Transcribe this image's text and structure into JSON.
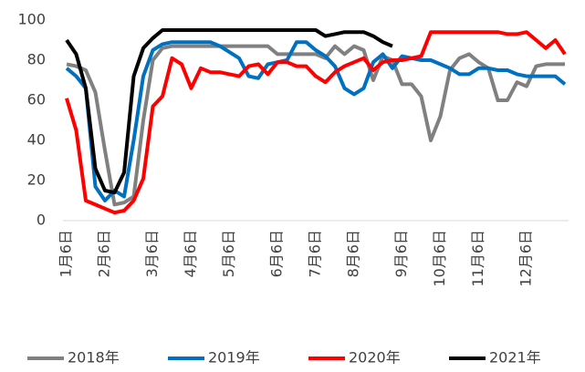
{
  "chart_data": {
    "type": "line",
    "categories": [
      "1月6日",
      null,
      null,
      null,
      "2月6日",
      null,
      null,
      null,
      null,
      "3月6日",
      null,
      null,
      null,
      "4月6日",
      null,
      null,
      null,
      "5月6日",
      null,
      null,
      null,
      null,
      "6月6日",
      null,
      null,
      null,
      "7月6日",
      null,
      null,
      null,
      "8月6日",
      null,
      null,
      null,
      null,
      "9月6日",
      null,
      null,
      null,
      "10月6日",
      null,
      null,
      null,
      "11月6日",
      null,
      null,
      null,
      null,
      "12月6日",
      null,
      null,
      null,
      null
    ],
    "series": [
      {
        "name": "2018年",
        "color": "#808080",
        "values": [
          78,
          77,
          75,
          64,
          35,
          8,
          9,
          12,
          50,
          80,
          86,
          87,
          87,
          87,
          87,
          87,
          87,
          87,
          87,
          87,
          87,
          87,
          83,
          83,
          83,
          83,
          83,
          81,
          87,
          83,
          87,
          85,
          70,
          82,
          80,
          68,
          68,
          62,
          40,
          52,
          75,
          81,
          83,
          79,
          76,
          60,
          60,
          69,
          67,
          77,
          78,
          78,
          78
        ]
      },
      {
        "name": "2019年",
        "color": "#0070c0",
        "values": [
          76,
          72,
          66,
          17,
          10,
          15,
          12,
          40,
          72,
          85,
          88,
          89,
          89,
          89,
          89,
          89,
          87,
          84,
          81,
          72,
          71,
          78,
          79,
          80,
          89,
          89,
          85,
          82,
          77,
          66,
          63,
          66,
          79,
          83,
          76,
          82,
          81,
          80,
          80,
          78,
          76,
          73,
          73,
          76,
          76,
          75,
          75,
          73,
          72,
          72,
          72,
          72,
          68
        ]
      },
      {
        "name": "2020年",
        "color": "#ff0000",
        "values": [
          61,
          45,
          10,
          8,
          6,
          4,
          5,
          10,
          21,
          57,
          62,
          81,
          78,
          66,
          76,
          74,
          74,
          73,
          72,
          77,
          78,
          73,
          79,
          79,
          77,
          77,
          72,
          69,
          74,
          77,
          79,
          81,
          75,
          79,
          80,
          80,
          81,
          82,
          94,
          94,
          94,
          94,
          94,
          94,
          94,
          94,
          93,
          93,
          94,
          90,
          86,
          90,
          83
        ]
      },
      {
        "name": "2021年",
        "color": "#000000",
        "values": [
          90,
          83,
          66,
          26,
          15,
          14,
          24,
          72,
          86,
          91,
          95,
          95,
          95,
          95,
          95,
          95,
          95,
          95,
          95,
          95,
          95,
          95,
          95,
          95,
          95,
          95,
          95,
          92,
          93,
          94,
          94,
          94,
          92,
          89,
          87,
          null,
          null,
          null,
          null,
          null,
          null,
          null,
          null,
          null,
          null,
          null,
          null,
          null,
          null,
          null,
          null,
          null,
          null
        ]
      }
    ],
    "ylim": [
      0,
      100
    ],
    "yticks": [
      0,
      20,
      40,
      60,
      80,
      100
    ],
    "legend": "bottom"
  }
}
